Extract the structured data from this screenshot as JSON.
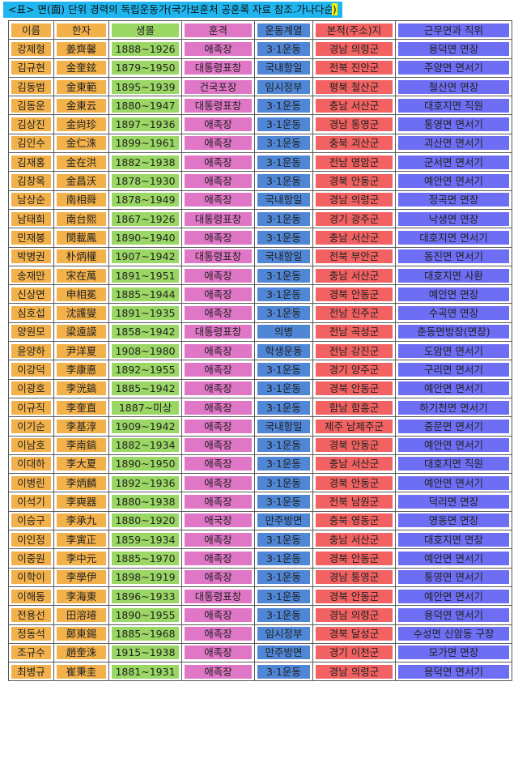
{
  "caption": {
    "prefix": "<표> 면(面) 단위 경력의 독립운동가(국가보훈처 공훈록 자료 참조.가나다순",
    "suffix": ")"
  },
  "table": {
    "headers": [
      "이름",
      "한자",
      "생몰",
      "훈격",
      "운동계열",
      "본적(주소)지",
      "근무면과 직위"
    ],
    "rows": [
      [
        "강제형",
        "姜齊馨",
        "1888~1926",
        "애족장",
        "3·1운동",
        "경남 의령군",
        "용덕면 면장"
      ],
      [
        "김규현",
        "金奎鉉",
        "1879~1950",
        "대통령표창",
        "국내항일",
        "전북 진안군",
        "주양면 면서기"
      ],
      [
        "김동범",
        "金東範",
        "1895~1939",
        "건국포장",
        "임시정부",
        "평북 철산군",
        "철산면 면장"
      ],
      [
        "김동운",
        "金東云",
        "1880~1947",
        "대통령표창",
        "3·1운동",
        "충남 서산군",
        "대호지면 직원"
      ],
      [
        "김상진",
        "金尙珍",
        "1897~1936",
        "애족장",
        "3·1운동",
        "경남 통영군",
        "통영면 면서기"
      ],
      [
        "김인수",
        "金仁洙",
        "1899~1961",
        "애족장",
        "3·1운동",
        "충북 괴산군",
        "괴산면 면서기"
      ],
      [
        "김재홍",
        "金在洪",
        "1882~1938",
        "애족장",
        "3·1운동",
        "전남 영암군",
        "군서면 면서기"
      ],
      [
        "김창옥",
        "金昌沃",
        "1878~1930",
        "애족장",
        "3·1운동",
        "경북 안동군",
        "예안면 면서기"
      ],
      [
        "남상순",
        "南相舜",
        "1878~1949",
        "애족장",
        "국내항일",
        "경남 의령군",
        "정곡면 면장"
      ],
      [
        "남태희",
        "南台熙",
        "1867~1926",
        "대통령표창",
        "3·1운동",
        "경기 광주군",
        "낙생면 면장"
      ],
      [
        "민재봉",
        "閔載鳳",
        "1890~1940",
        "애족장",
        "3·1운동",
        "충남 서산군",
        "대호지면 면서기"
      ],
      [
        "박병권",
        "朴炳權",
        "1907~1942",
        "대통령표창",
        "국내항일",
        "전북 부안군",
        "동진면 면서기"
      ],
      [
        "송재만",
        "宋在萬",
        "1891~1951",
        "애족장",
        "3·1운동",
        "충남 서산군",
        "대호지면 사환"
      ],
      [
        "신상면",
        "申相冕",
        "1885~1944",
        "애족장",
        "3·1운동",
        "경북 안동군",
        "예안면 면장"
      ],
      [
        "심호섭",
        "沈護燮",
        "1891~1935",
        "애족장",
        "3·1운동",
        "전남 진주군",
        "수곡면 면장"
      ],
      [
        "양원모",
        "梁遠謨",
        "1858~1942",
        "대통령표창",
        "의병",
        "전남 곡성군",
        "춘동면방장(면장)"
      ],
      [
        "윤양하",
        "尹洋夏",
        "1908~1980",
        "애족장",
        "학생운동",
        "전남 강진군",
        "도암면 면서기"
      ],
      [
        "이강덕",
        "李康悳",
        "1892~1955",
        "애족장",
        "3·1운동",
        "경기 양주군",
        "구리면 면서기"
      ],
      [
        "이광호",
        "李洸鎬",
        "1885~1942",
        "애족장",
        "3·1운동",
        "경북 안동군",
        "예안면 면서기"
      ],
      [
        "이규직",
        "李奎直",
        "1887~미상",
        "애족장",
        "3·1운동",
        "함남 함흥군",
        "하기천면 면서기"
      ],
      [
        "이기순",
        "李基淳",
        "1909~1942",
        "애족장",
        "국내항일",
        "제주 남제주군",
        "중문면 면서기"
      ],
      [
        "이남호",
        "李南鎬",
        "1882~1934",
        "애족장",
        "3·1운동",
        "경북 안동군",
        "예안면 면서기"
      ],
      [
        "이대하",
        "李大夏",
        "1890~1950",
        "애족장",
        "3·1운동",
        "충남 서산군",
        "대호지면 직원"
      ],
      [
        "이병린",
        "李炳麟",
        "1892~1936",
        "애족장",
        "3·1운동",
        "경북 안동군",
        "예안면 면서기"
      ],
      [
        "이석기",
        "李奭器",
        "1880~1938",
        "애족장",
        "3·1운동",
        "전북 남원군",
        "덕리면 면장"
      ],
      [
        "이승구",
        "李承九",
        "1880~1920",
        "애국장",
        "만주방면",
        "충북 영동군",
        "영동면 면장"
      ],
      [
        "이인정",
        "李寅正",
        "1859~1934",
        "애족장",
        "3·1운동",
        "충남 서산군",
        "대호지면 면장"
      ],
      [
        "이중원",
        "李中元",
        "1885~1970",
        "애족장",
        "3·1운동",
        "경북 안동군",
        "예안면 면서기"
      ],
      [
        "이학이",
        "李學伊",
        "1898~1919",
        "애족장",
        "3·1운동",
        "경남 통영군",
        "통영면 면서기"
      ],
      [
        "이해동",
        "李海東",
        "1896~1933",
        "대통령표창",
        "3·1운동",
        "경북 안동군",
        "예안면 면서기"
      ],
      [
        "전용선",
        "田溶璿",
        "1890~1955",
        "애족장",
        "3·1운동",
        "경남 의령군",
        "용덕면 면서기"
      ],
      [
        "정동석",
        "鄭東錫",
        "1885~1968",
        "애족장",
        "임시정부",
        "경북 달성군",
        "수성면 신암동 구장"
      ],
      [
        "조규수",
        "趙奎洙",
        "1915~1938",
        "애족장",
        "만주방면",
        "경기 이천군",
        "모가면 면장"
      ],
      [
        "최병규",
        "崔秉圭",
        "1881~1931",
        "애족장",
        "3·1운동",
        "경남 의령군",
        "용덕면 면서기"
      ]
    ]
  }
}
